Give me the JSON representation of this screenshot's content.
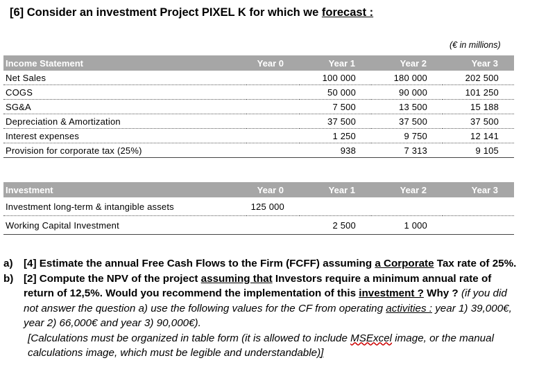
{
  "heading": {
    "prefix": "[6] Consider an investment Project PIXEL K for which we ",
    "underlined": "forecast :"
  },
  "units_note": "(€ in millions)",
  "income_statement": {
    "headers": [
      "Income Statement",
      "Year 0",
      "Year 1",
      "Year 2",
      "Year 3"
    ],
    "rows": [
      {
        "label": "Net Sales",
        "values": [
          "",
          "100 000",
          "180 000",
          "202 500"
        ]
      },
      {
        "label": "COGS",
        "values": [
          "",
          "50 000",
          "90 000",
          "101 250"
        ]
      },
      {
        "label": "SG&A",
        "values": [
          "",
          "7 500",
          "13 500",
          "15 188"
        ]
      },
      {
        "label": "Depreciation & Amortization",
        "values": [
          "",
          "37 500",
          "37 500",
          "37 500"
        ]
      },
      {
        "label": "Interest expenses",
        "values": [
          "",
          "1 250",
          "9 750",
          "12 141"
        ]
      },
      {
        "label": "Provision for corporate tax (25%)",
        "values": [
          "",
          "938",
          "7 313",
          "9 105"
        ]
      }
    ]
  },
  "investment": {
    "headers": [
      "Investment",
      "Year 0",
      "Year 1",
      "Year 2",
      "Year 3"
    ],
    "rows": [
      {
        "label": "Investment long-term & intangible assets",
        "values": [
          "125 000",
          "",
          "",
          ""
        ]
      },
      {
        "label": "Working Capital Investment",
        "values": [
          "",
          "2 500",
          "1 000",
          ""
        ]
      }
    ]
  },
  "question_a": {
    "label": "a)",
    "t1": "[4] Estimate the annual Free Cash Flows to the Firm (FCFF) assuming ",
    "t2": "a  Corporate",
    "t3": " Tax rate of 25%."
  },
  "question_b": {
    "label": "b)",
    "t1": "[2] Compute the NPV of the project ",
    "t2": "assuming that",
    "t3": " Investors require a minimum annual rate of return of 12,5%. Would you recommend the implementation of this ",
    "t4": "investment ?",
    "t5": " Why ? ",
    "t6": "(if you did not answer the question a) use the following values for the CF from operating ",
    "t7": "activities :",
    "t8": " year 1) 39,000€, year 2) 66,000€ and year 3) 90,000€).",
    "t9": "[Calculations must be organized in table form (it is allowed to include ",
    "t10": "MSExcel",
    "t11": " image, or the manual calculations image, which must be legible and understandable",
    "t12": ")",
    "t13": "]"
  }
}
